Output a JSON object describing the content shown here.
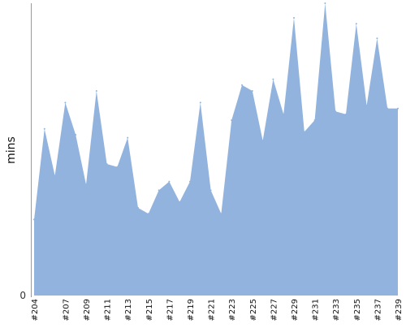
{
  "chart_data": {
    "type": "area",
    "title": "",
    "xlabel": "",
    "ylabel": "mins",
    "y_tick_labels": [
      "0"
    ],
    "grid": false,
    "legend": "none",
    "fill_color": "#92b3dd",
    "series": [
      {
        "x": [
          "#204",
          "#205",
          "#206",
          "#207",
          "#208",
          "#209",
          "#210",
          "#211",
          "#212",
          "#213",
          "#214",
          "#215",
          "#216",
          "#217",
          "#218",
          "#219",
          "#220",
          "#221",
          "#222",
          "#223",
          "#224",
          "#225",
          "#226",
          "#227",
          "#228",
          "#229",
          "#230",
          "#231",
          "#232",
          "#233",
          "#234",
          "#235",
          "#236",
          "#237",
          "#238",
          "#239"
        ],
        "values": [
          26,
          57,
          41,
          66,
          55,
          38,
          70,
          45,
          44,
          54,
          30,
          28,
          36,
          39,
          32,
          39,
          66,
          36,
          28,
          60,
          72,
          70,
          53,
          74,
          62,
          95,
          56,
          60,
          100,
          63,
          62,
          93,
          65,
          88,
          64,
          64
        ]
      }
    ],
    "x_tick_labels": [
      "#204",
      "#207",
      "#209",
      "#211",
      "#213",
      "#215",
      "#217",
      "#219",
      "#221",
      "#223",
      "#225",
      "#227",
      "#229",
      "#231",
      "#233",
      "#235",
      "#237",
      "#239"
    ],
    "ylim": [
      0,
      100
    ]
  }
}
